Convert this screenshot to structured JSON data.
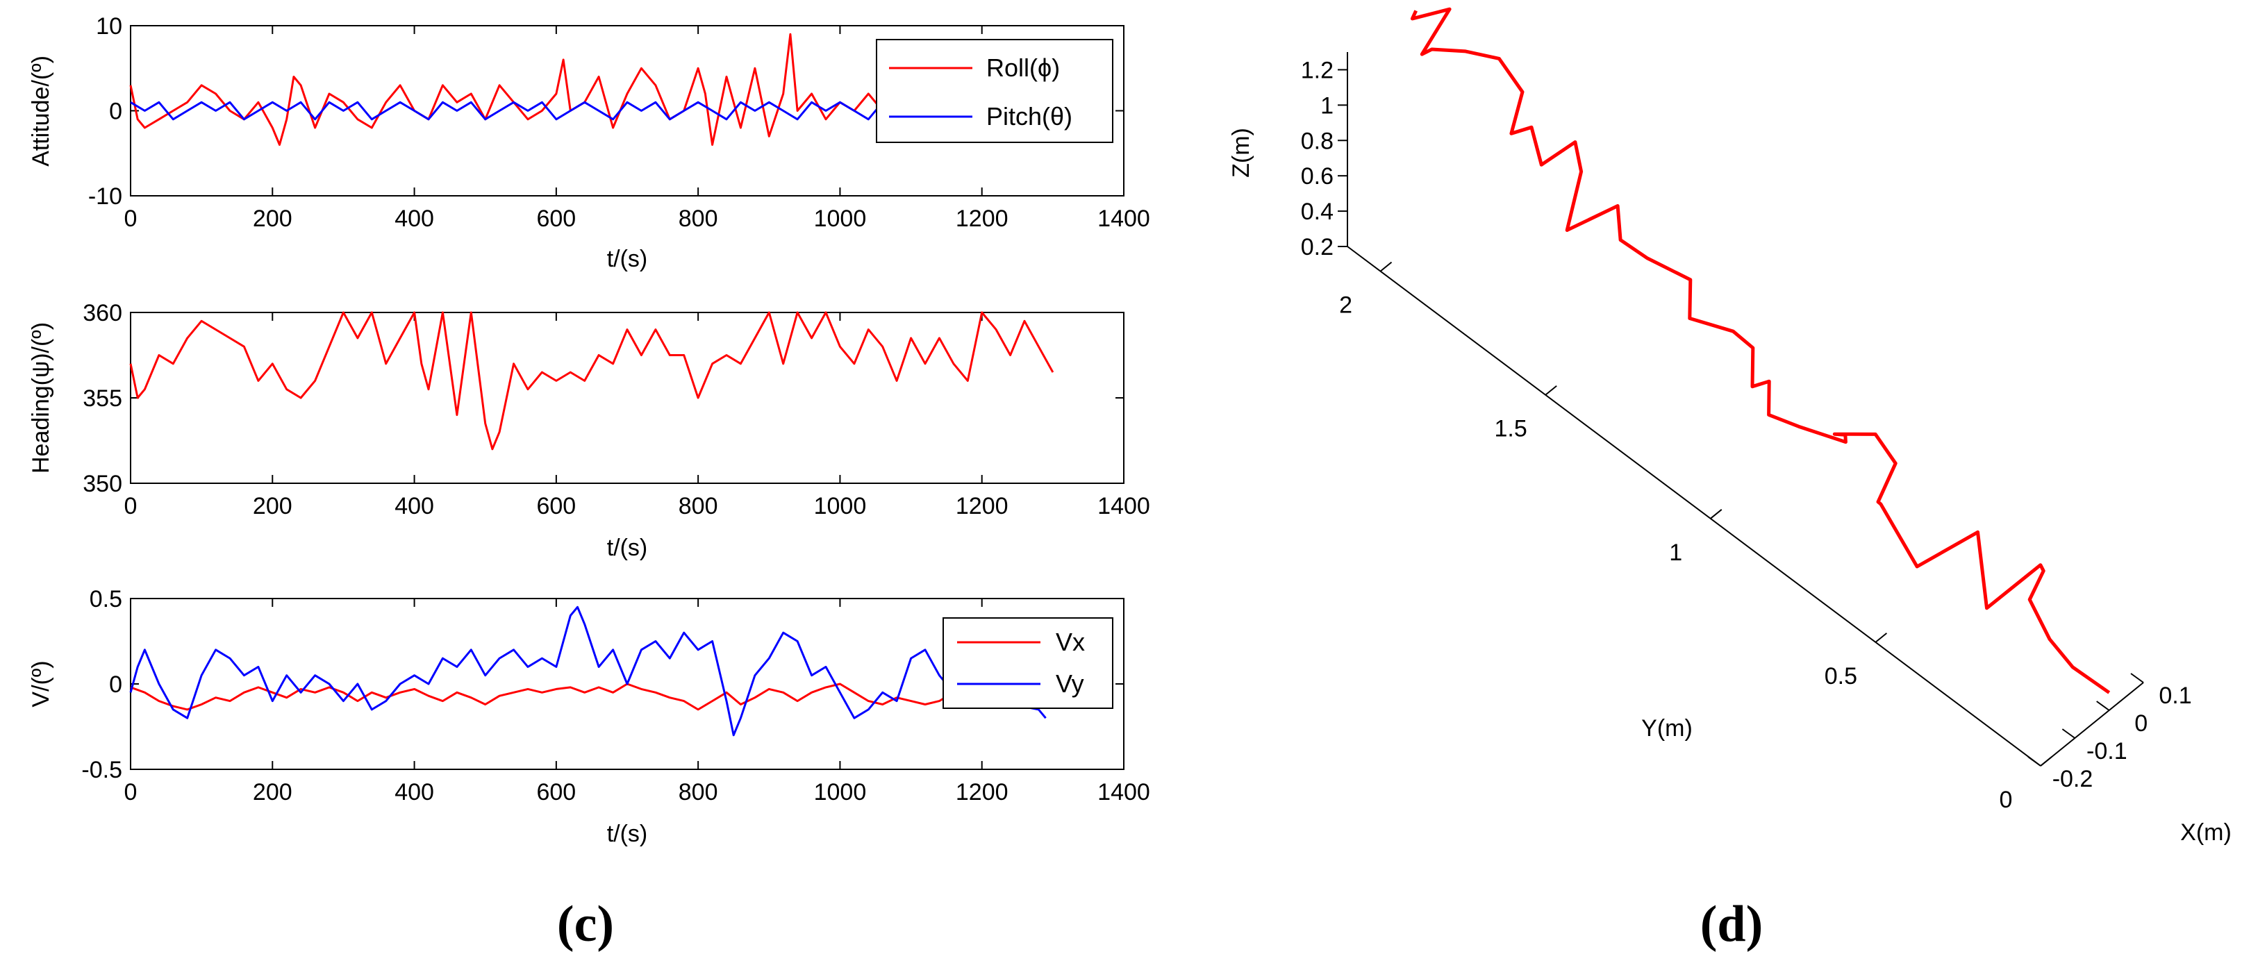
{
  "panels": {
    "c_label": "(c)",
    "d_label": "(d)"
  },
  "colors": {
    "red": "#ff0000",
    "blue": "#0000ff",
    "axis": "#000000"
  },
  "chart_data": [
    {
      "type": "line",
      "id": "attitude",
      "xlabel": "t/(s)",
      "ylabel": "Attitude/(º)",
      "xlim": [
        0,
        1400
      ],
      "ylim": [
        -10,
        10
      ],
      "xticks": [
        0,
        200,
        400,
        600,
        800,
        1000,
        1200,
        1400
      ],
      "yticks": [
        -10,
        0,
        10
      ],
      "legend_position": "top-right",
      "series": [
        {
          "name": "Roll(ϕ)",
          "color": "#ff0000",
          "x": [
            0,
            10,
            20,
            40,
            60,
            80,
            100,
            120,
            140,
            160,
            180,
            200,
            210,
            220,
            230,
            240,
            260,
            280,
            300,
            320,
            340,
            360,
            380,
            400,
            420,
            440,
            460,
            480,
            500,
            520,
            540,
            560,
            580,
            600,
            610,
            620,
            640,
            660,
            680,
            700,
            720,
            740,
            760,
            780,
            800,
            810,
            820,
            840,
            860,
            880,
            900,
            920,
            930,
            940,
            960,
            980,
            1000,
            1020,
            1040,
            1060
          ],
          "y": [
            3,
            -1,
            -2,
            -1,
            0,
            1,
            3,
            2,
            0,
            -1,
            1,
            -2,
            -4,
            -1,
            4,
            3,
            -2,
            2,
            1,
            -1,
            -2,
            1,
            3,
            0,
            -1,
            3,
            1,
            2,
            -1,
            3,
            1,
            -1,
            0,
            2,
            6,
            0,
            1,
            4,
            -2,
            2,
            5,
            3,
            -1,
            0,
            5,
            2,
            -4,
            4,
            -2,
            5,
            -3,
            2,
            9,
            0,
            2,
            -1,
            1,
            0,
            2,
            0
          ]
        },
        {
          "name": "Pitch(θ)",
          "color": "#0000ff",
          "x": [
            0,
            20,
            40,
            60,
            80,
            100,
            120,
            140,
            160,
            180,
            200,
            220,
            240,
            260,
            280,
            300,
            320,
            340,
            360,
            380,
            400,
            420,
            440,
            460,
            480,
            500,
            520,
            540,
            560,
            580,
            600,
            620,
            640,
            660,
            680,
            700,
            720,
            740,
            760,
            780,
            800,
            820,
            840,
            860,
            880,
            900,
            920,
            940,
            960,
            980,
            1000,
            1020,
            1040,
            1060
          ],
          "y": [
            1,
            0,
            1,
            -1,
            0,
            1,
            0,
            1,
            -1,
            0,
            1,
            0,
            1,
            -1,
            1,
            0,
            1,
            -1,
            0,
            1,
            0,
            -1,
            1,
            0,
            1,
            -1,
            0,
            1,
            0,
            1,
            -1,
            0,
            1,
            0,
            -1,
            1,
            0,
            1,
            -1,
            0,
            1,
            0,
            -1,
            1,
            0,
            1,
            0,
            -1,
            1,
            0,
            1,
            0,
            -1,
            1
          ]
        }
      ]
    },
    {
      "type": "line",
      "id": "heading",
      "xlabel": "t/(s)",
      "ylabel": "Heading(ψ)/(º)",
      "xlim": [
        0,
        1400
      ],
      "ylim": [
        350,
        360
      ],
      "xticks": [
        0,
        200,
        400,
        600,
        800,
        1000,
        1200,
        1400
      ],
      "yticks": [
        350,
        355,
        360
      ],
      "series": [
        {
          "name": "",
          "color": "#ff0000",
          "x": [
            0,
            10,
            20,
            40,
            60,
            80,
            100,
            120,
            140,
            160,
            180,
            200,
            220,
            240,
            260,
            280,
            300,
            320,
            340,
            360,
            380,
            400,
            410,
            420,
            440,
            460,
            470,
            480,
            500,
            510,
            520,
            540,
            560,
            580,
            600,
            620,
            640,
            660,
            680,
            700,
            720,
            740,
            760,
            780,
            800,
            820,
            840,
            860,
            880,
            900,
            920,
            940,
            960,
            980,
            1000,
            1020,
            1040,
            1060,
            1080,
            1100,
            1120,
            1140,
            1160,
            1180,
            1200,
            1220,
            1240,
            1260,
            1280,
            1300
          ],
          "y": [
            357,
            355,
            355.5,
            357.5,
            357,
            358.5,
            359.5,
            359,
            358.5,
            358,
            356,
            357,
            355.5,
            355,
            356,
            358,
            360,
            358.5,
            360,
            357,
            358.5,
            360,
            357,
            355.5,
            360,
            354,
            357,
            360,
            353.5,
            352,
            353,
            357,
            355.5,
            356.5,
            356,
            356.5,
            356,
            357.5,
            357,
            359,
            357.5,
            359,
            357.5,
            357.5,
            355,
            357,
            357.5,
            357,
            358.5,
            360,
            357,
            360,
            358.5,
            360,
            358,
            357,
            359,
            358,
            356,
            358.5,
            357,
            358.5,
            357,
            356,
            360,
            359,
            357.5,
            359.5,
            358,
            356.5
          ]
        }
      ]
    },
    {
      "type": "line",
      "id": "velocity",
      "xlabel": "t/(s)",
      "ylabel": "V/(º)",
      "xlim": [
        0,
        1400
      ],
      "ylim": [
        -0.5,
        0.5
      ],
      "xticks": [
        0,
        200,
        400,
        600,
        800,
        1000,
        1200,
        1400
      ],
      "yticks": [
        -0.5,
        0,
        0.5
      ],
      "legend_position": "top-right",
      "series": [
        {
          "name": "Vx",
          "color": "#ff0000",
          "x": [
            0,
            20,
            40,
            60,
            80,
            100,
            120,
            140,
            160,
            180,
            200,
            220,
            240,
            260,
            280,
            300,
            320,
            340,
            360,
            380,
            400,
            420,
            440,
            460,
            480,
            500,
            520,
            540,
            560,
            580,
            600,
            620,
            640,
            660,
            680,
            700,
            720,
            740,
            760,
            780,
            800,
            820,
            840,
            860,
            880,
            900,
            920,
            940,
            960,
            980,
            1000,
            1020,
            1040,
            1060,
            1080,
            1100,
            1120,
            1140,
            1160
          ],
          "y": [
            -0.02,
            -0.05,
            -0.1,
            -0.13,
            -0.15,
            -0.12,
            -0.08,
            -0.1,
            -0.05,
            -0.02,
            -0.05,
            -0.08,
            -0.03,
            -0.05,
            -0.02,
            -0.05,
            -0.1,
            -0.05,
            -0.08,
            -0.05,
            -0.03,
            -0.07,
            -0.1,
            -0.05,
            -0.08,
            -0.12,
            -0.07,
            -0.05,
            -0.03,
            -0.05,
            -0.03,
            -0.02,
            -0.05,
            -0.02,
            -0.05,
            0.0,
            -0.03,
            -0.05,
            -0.08,
            -0.1,
            -0.15,
            -0.1,
            -0.05,
            -0.12,
            -0.08,
            -0.03,
            -0.05,
            -0.1,
            -0.05,
            -0.02,
            0.0,
            -0.05,
            -0.1,
            -0.12,
            -0.08,
            -0.1,
            -0.12,
            -0.1,
            -0.05
          ]
        },
        {
          "name": "Vy",
          "color": "#0000ff",
          "x": [
            0,
            10,
            20,
            40,
            60,
            80,
            100,
            120,
            140,
            160,
            180,
            200,
            220,
            240,
            260,
            280,
            300,
            320,
            340,
            360,
            380,
            400,
            420,
            440,
            460,
            480,
            500,
            520,
            540,
            560,
            580,
            600,
            620,
            630,
            640,
            660,
            680,
            700,
            720,
            740,
            760,
            780,
            800,
            820,
            840,
            850,
            860,
            880,
            900,
            920,
            940,
            960,
            980,
            1000,
            1020,
            1040,
            1060,
            1080,
            1100,
            1120,
            1140,
            1160,
            1280,
            1290
          ],
          "y": [
            -0.05,
            0.1,
            0.2,
            0.0,
            -0.15,
            -0.2,
            0.05,
            0.2,
            0.15,
            0.05,
            0.1,
            -0.1,
            0.05,
            -0.05,
            0.05,
            0.0,
            -0.1,
            0.0,
            -0.15,
            -0.1,
            0.0,
            0.05,
            0.0,
            0.15,
            0.1,
            0.2,
            0.05,
            0.15,
            0.2,
            0.1,
            0.15,
            0.1,
            0.4,
            0.45,
            0.35,
            0.1,
            0.2,
            0.0,
            0.2,
            0.25,
            0.15,
            0.3,
            0.2,
            0.25,
            -0.1,
            -0.3,
            -0.2,
            0.05,
            0.15,
            0.3,
            0.25,
            0.05,
            0.1,
            -0.05,
            -0.2,
            -0.15,
            -0.05,
            -0.1,
            0.15,
            0.2,
            0.05,
            -0.05,
            -0.15,
            -0.2
          ]
        }
      ]
    },
    {
      "type": "line",
      "id": "trajectory3d",
      "xlabel": "X(m)",
      "ylabel": "Y(m)",
      "zlabel": "Z(m)",
      "xticks": [
        -0.2,
        -0.1,
        0,
        0.1
      ],
      "yticks": [
        0,
        0.5,
        1,
        1.5,
        2
      ],
      "zticks": [
        0.2,
        0.4,
        0.6,
        0.8,
        1,
        1.2
      ],
      "xlim": [
        -0.2,
        0.1
      ],
      "ylim": [
        0,
        2.1
      ],
      "zlim": [
        0.2,
        1.3
      ],
      "series": [
        {
          "name": "",
          "color": "#ff0000",
          "x": [
            0.0,
            -0.01,
            0.0,
            -0.02,
            0.03,
            0.05,
            -0.02,
            0.05,
            -0.05,
            -0.05,
            0.0,
            0.08,
            0.05,
            -0.05,
            0.02,
            0.05,
            -0.02,
            -0.03,
            0.0,
            -0.02,
            0.02,
            0.03,
            -0.02,
            0.04,
            0.0,
            -0.01,
            0.03,
            -0.06,
            0.02,
            0.06,
            0.0,
            0.0,
            -0.03,
            0.07,
            0.05,
            0.0,
            -0.05,
            -0.05,
            0.05,
            -0.03,
            0.0
          ],
          "y": [
            0.0,
            0.1,
            0.18,
            0.22,
            0.23,
            0.26,
            0.35,
            0.45,
            0.53,
            0.64,
            0.7,
            0.73,
            0.76,
            0.78,
            0.82,
            0.85,
            0.92,
            1.0,
            1.03,
            1.06,
            1.1,
            1.17,
            1.25,
            1.31,
            1.4,
            1.47,
            1.52,
            1.58,
            1.62,
            1.68,
            1.72,
            1.75,
            1.78,
            1.85,
            1.9,
            1.95,
            2.0,
            2.03,
            2.05,
            2.08,
            2.1
          ],
          "z": [
            0.3,
            0.32,
            0.35,
            0.55,
            0.62,
            0.58,
            0.32,
            0.5,
            0.35,
            0.55,
            0.4,
            0.45,
            0.62,
            0.75,
            0.58,
            0.45,
            0.55,
            0.52,
            0.62,
            0.58,
            0.68,
            0.66,
            0.7,
            0.74,
            0.8,
            0.82,
            0.88,
            0.8,
            0.95,
            0.97,
            0.88,
            1.05,
            1.02,
            1.0,
            1.15,
            1.2,
            1.22,
            1.15,
            1.22,
            1.25,
            1.22
          ]
        }
      ]
    }
  ]
}
